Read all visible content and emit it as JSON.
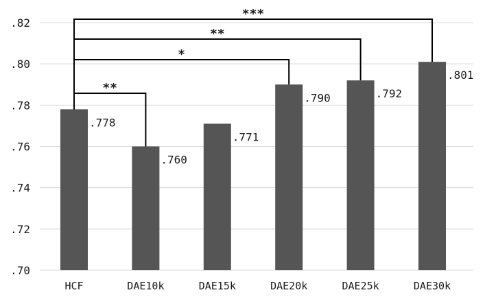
{
  "chart_data": {
    "type": "bar",
    "categories": [
      "HCF",
      "DAE10k",
      "DAE15k",
      "DAE20k",
      "DAE25k",
      "DAE30k"
    ],
    "values": [
      0.778,
      0.76,
      0.771,
      0.79,
      0.792,
      0.801
    ],
    "data_labels": [
      ".778",
      ".760",
      ".771",
      ".790",
      ".792",
      ".801"
    ],
    "ylim": [
      0.7,
      0.82
    ],
    "yticks": [
      0.7,
      0.72,
      0.74,
      0.76,
      0.78,
      0.8,
      0.82
    ],
    "ytick_labels": [
      ".70",
      ".72",
      ".74",
      ".76",
      ".78",
      ".80",
      ".82"
    ],
    "grid": true,
    "bar_color": "#555555",
    "significance": [
      {
        "from": "HCF",
        "to": "DAE10k",
        "label": "**"
      },
      {
        "from": "HCF",
        "to": "DAE20k",
        "label": "*"
      },
      {
        "from": "HCF",
        "to": "DAE25k",
        "label": "**"
      },
      {
        "from": "HCF",
        "to": "DAE30k",
        "label": "***"
      }
    ]
  }
}
